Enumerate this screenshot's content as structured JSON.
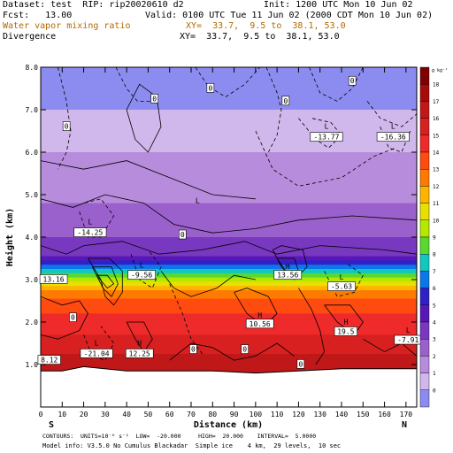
{
  "header": {
    "dataset": "Dataset: test  RIP: rip20020610 d2",
    "init": "Init: 1200 UTC Mon 10 Jun 02",
    "fcst": "Fcst:   13.00",
    "valid": "Valid: 0100 UTC Tue 11 Jun 02 (2000 CDT Mon 10 Jun 02)",
    "field1": "Water vapor mixing ratio",
    "field1_xy": "XY=  33.7,  9.5 to  38.1, 53.0",
    "field2": "Divergence",
    "field2_xy": "XY=  33.7,  9.5 to  38.1, 53.0"
  },
  "footer": {
    "contours": "CONTOURS:  UNITS=10⁻⁶ s⁻¹  LOW=  -20.000     HIGH=  20.000    INTERVAL=  5.0000",
    "model_info": "Model info: V3.5.0 No Cumulus Blackadar  Simple ice    4 km,  29 levels,  10 sec"
  },
  "chart_data": {
    "type": "heatmap",
    "xlabel": "Distance (km)",
    "ylabel": "Height (km)",
    "xlim": [
      0,
      175
    ],
    "ylim": [
      0,
      8
    ],
    "x_ticks": [
      0,
      10,
      20,
      30,
      40,
      50,
      60,
      70,
      80,
      90,
      100,
      110,
      120,
      130,
      140,
      150,
      160,
      170
    ],
    "y_ticks": [
      1.0,
      2.0,
      3.0,
      4.0,
      5.0,
      6.0,
      7.0,
      8.0
    ],
    "y_tick_labels": [
      "1.0",
      "2.0",
      "3.0",
      "4.0",
      "5.0",
      "6.0",
      "7.0",
      "8.0"
    ],
    "x_end_labels": [
      "S",
      "N"
    ],
    "colorbar": {
      "unit": "g kg⁻¹",
      "levels": [
        18,
        17,
        16,
        15,
        14,
        13,
        12,
        11,
        10,
        9,
        8,
        7,
        6,
        5,
        4,
        3,
        2,
        1,
        0
      ],
      "colors": [
        "#7f0000",
        "#a60a0a",
        "#c01818",
        "#d82020",
        "#ee2a2a",
        "#ff4a10",
        "#ff7a00",
        "#ffb400",
        "#e8e000",
        "#b4e800",
        "#58d830",
        "#10c8c0",
        "#0a78e8",
        "#3020c8",
        "#5818b8",
        "#7838c0",
        "#9a60cc",
        "#b88cdc",
        "#d0b8ec",
        "#8c8cf0"
      ]
    },
    "moisture_bands": [
      {
        "z": 8.0,
        "level": 0
      },
      {
        "z": 7.0,
        "level": 1
      },
      {
        "z": 6.0,
        "level": 2
      },
      {
        "z": 4.8,
        "level": 3
      },
      {
        "z": 4.0,
        "level": 4
      },
      {
        "z": 3.55,
        "level": 5
      },
      {
        "z": 3.45,
        "level": 6
      },
      {
        "z": 3.35,
        "level": 7
      },
      {
        "z": 3.25,
        "level": 8
      },
      {
        "z": 3.15,
        "level": 9
      },
      {
        "z": 3.05,
        "level": 10
      },
      {
        "z": 2.95,
        "level": 11
      },
      {
        "z": 2.85,
        "level": 12
      },
      {
        "z": 2.75,
        "level": 13
      },
      {
        "z": 2.55,
        "level": 14
      },
      {
        "z": 2.2,
        "level": 15
      },
      {
        "z": 1.7,
        "level": 16
      },
      {
        "z": 1.25,
        "level": 17
      }
    ],
    "terrain": [
      [
        0,
        0.85
      ],
      [
        10,
        0.85
      ],
      [
        20,
        0.95
      ],
      [
        40,
        0.85
      ],
      [
        60,
        0.85
      ],
      [
        80,
        0.85
      ],
      [
        100,
        0.8
      ],
      [
        120,
        0.85
      ],
      [
        140,
        0.9
      ],
      [
        160,
        0.9
      ],
      [
        175,
        0.9
      ]
    ],
    "annotations": [
      {
        "text": "L",
        "x": 23,
        "y": 4.3
      },
      {
        "text": "-14.25",
        "x": 23,
        "y": 4.05
      },
      {
        "text": "L",
        "x": 73,
        "y": 4.8
      },
      {
        "text": "L",
        "x": 47,
        "y": 3.28
      },
      {
        "text": "-9.56",
        "x": 47,
        "y": 3.05
      },
      {
        "text": "13.16",
        "x": 6,
        "y": 2.95
      },
      {
        "text": "H",
        "x": 115,
        "y": 3.25
      },
      {
        "text": "13.56",
        "x": 115,
        "y": 3.05
      },
      {
        "text": "L",
        "x": 133,
        "y": 6.55
      },
      {
        "text": "-13.77",
        "x": 133,
        "y": 6.3
      },
      {
        "text": "L",
        "x": 164,
        "y": 6.55
      },
      {
        "text": "-16.36",
        "x": 164,
        "y": 6.3
      },
      {
        "text": "L",
        "x": 140,
        "y": 3.0
      },
      {
        "text": "-5.63",
        "x": 140,
        "y": 2.78
      },
      {
        "text": "H",
        "x": 102,
        "y": 2.1
      },
      {
        "text": "10.56",
        "x": 102,
        "y": 1.9
      },
      {
        "text": "H",
        "x": 142,
        "y": 1.95
      },
      {
        "text": "19.5",
        "x": 142,
        "y": 1.72
      },
      {
        "text": "L",
        "x": 171,
        "y": 1.75
      },
      {
        "text": "-7.91",
        "x": 171,
        "y": 1.52
      },
      {
        "text": "L",
        "x": 26,
        "y": 1.45
      },
      {
        "text": "-21.04",
        "x": 26,
        "y": 1.2
      },
      {
        "text": "H",
        "x": 46,
        "y": 1.45
      },
      {
        "text": "12.25",
        "x": 46,
        "y": 1.2
      },
      {
        "text": "8.12",
        "x": 4,
        "y": 1.05
      }
    ],
    "contour_labels": [
      {
        "text": "0",
        "x": 79,
        "y": 7.45
      },
      {
        "text": "0",
        "x": 145,
        "y": 7.62
      },
      {
        "text": "0",
        "x": 53,
        "y": 7.2
      },
      {
        "text": "0",
        "x": 114,
        "y": 7.15
      },
      {
        "text": "0",
        "x": 12,
        "y": 6.55
      },
      {
        "text": "0",
        "x": 66,
        "y": 4.0
      },
      {
        "text": "0",
        "x": 15,
        "y": 2.05
      },
      {
        "text": "0",
        "x": 71,
        "y": 1.3
      },
      {
        "text": "0",
        "x": 95,
        "y": 1.3
      },
      {
        "text": "0",
        "x": 121,
        "y": 0.95
      }
    ],
    "divergence_lines": [
      {
        "dash": true,
        "pts": [
          [
            8,
            8.0
          ],
          [
            12,
            7.2
          ],
          [
            14,
            6.5
          ],
          [
            12,
            6.0
          ],
          [
            8,
            5.6
          ]
        ]
      },
      {
        "dash": true,
        "pts": [
          [
            35,
            8.0
          ],
          [
            40,
            7.5
          ],
          [
            45,
            7.2
          ],
          [
            52,
            7.2
          ]
        ]
      },
      {
        "dash": true,
        "pts": [
          [
            72,
            8.0
          ],
          [
            78,
            7.55
          ],
          [
            86,
            7.3
          ],
          [
            95,
            7.6
          ],
          [
            102,
            8.0
          ]
        ]
      },
      {
        "dash": true,
        "pts": [
          [
            105,
            8.0
          ],
          [
            110,
            7.4
          ],
          [
            112,
            7.0
          ],
          [
            110,
            6.4
          ],
          [
            106,
            6.0
          ]
        ]
      },
      {
        "dash": true,
        "pts": [
          [
            125,
            8.0
          ],
          [
            130,
            7.4
          ],
          [
            138,
            7.2
          ],
          [
            145,
            7.5
          ],
          [
            150,
            8.0
          ]
        ]
      },
      {
        "dash": true,
        "pts": [
          [
            152,
            7.2
          ],
          [
            158,
            6.8
          ],
          [
            168,
            6.6
          ],
          [
            175,
            6.9
          ]
        ]
      },
      {
        "dash": true,
        "pts": [
          [
            120,
            6.8
          ],
          [
            128,
            6.3
          ],
          [
            134,
            6.1
          ],
          [
            140,
            6.4
          ],
          [
            135,
            6.7
          ],
          [
            126,
            6.8
          ]
        ]
      },
      {
        "dash": true,
        "pts": [
          [
            158,
            6.6
          ],
          [
            162,
            6.1
          ],
          [
            168,
            6.0
          ],
          [
            172,
            6.5
          ]
        ]
      },
      {
        "dash": true,
        "pts": [
          [
            100,
            6.5
          ],
          [
            108,
            5.6
          ],
          [
            120,
            5.2
          ],
          [
            140,
            5.4
          ],
          [
            155,
            5.9
          ],
          [
            165,
            6.1
          ]
        ]
      },
      {
        "dash": true,
        "pts": [
          [
            18,
            4.6
          ],
          [
            22,
            4.0
          ],
          [
            28,
            4.0
          ],
          [
            34,
            4.5
          ],
          [
            28,
            4.9
          ],
          [
            20,
            4.8
          ]
        ]
      },
      {
        "dash": true,
        "pts": [
          [
            42,
            3.6
          ],
          [
            46,
            3.0
          ],
          [
            52,
            2.8
          ],
          [
            56,
            3.3
          ],
          [
            50,
            3.7
          ]
        ]
      },
      {
        "dash": true,
        "pts": [
          [
            132,
            3.2
          ],
          [
            138,
            2.6
          ],
          [
            146,
            2.7
          ],
          [
            150,
            3.1
          ],
          [
            142,
            3.4
          ]
        ]
      },
      {
        "dash": true,
        "pts": [
          [
            60,
            2.9
          ],
          [
            66,
            2.2
          ],
          [
            70,
            1.6
          ],
          [
            76,
            1.2
          ]
        ]
      },
      {
        "dash": true,
        "pts": [
          [
            20,
            1.7
          ],
          [
            24,
            1.2
          ],
          [
            30,
            1.1
          ],
          [
            34,
            1.5
          ],
          [
            28,
            1.9
          ]
        ]
      },
      {
        "dash": false,
        "pts": [
          [
            40,
            7.0
          ],
          [
            44,
            6.3
          ],
          [
            50,
            6.0
          ],
          [
            56,
            6.6
          ],
          [
            54,
            7.3
          ],
          [
            46,
            7.6
          ],
          [
            40,
            7.0
          ]
        ]
      },
      {
        "dash": false,
        "pts": [
          [
            0,
            5.8
          ],
          [
            20,
            5.6
          ],
          [
            40,
            5.8
          ],
          [
            60,
            5.4
          ],
          [
            80,
            5.0
          ],
          [
            100,
            4.9
          ]
        ]
      },
      {
        "dash": false,
        "pts": [
          [
            0,
            4.9
          ],
          [
            15,
            4.7
          ],
          [
            30,
            5.0
          ],
          [
            48,
            4.8
          ],
          [
            62,
            4.3
          ],
          [
            80,
            4.1
          ],
          [
            100,
            4.2
          ],
          [
            120,
            4.4
          ],
          [
            145,
            4.5
          ],
          [
            175,
            4.4
          ]
        ]
      },
      {
        "dash": false,
        "pts": [
          [
            0,
            3.8
          ],
          [
            12,
            3.6
          ],
          [
            20,
            3.8
          ],
          [
            38,
            3.9
          ],
          [
            55,
            3.6
          ],
          [
            75,
            3.7
          ],
          [
            95,
            3.9
          ],
          [
            110,
            3.6
          ],
          [
            130,
            3.8
          ],
          [
            160,
            3.7
          ],
          [
            175,
            3.6
          ]
        ]
      },
      {
        "dash": false,
        "pts": [
          [
            22,
            3.5
          ],
          [
            28,
            3.0
          ],
          [
            30,
            2.6
          ],
          [
            34,
            2.4
          ],
          [
            38,
            2.7
          ],
          [
            38,
            3.2
          ],
          [
            32,
            3.5
          ],
          [
            22,
            3.5
          ]
        ]
      },
      {
        "dash": false,
        "pts": [
          [
            24,
            3.3
          ],
          [
            29,
            2.8
          ],
          [
            33,
            2.6
          ],
          [
            36,
            2.9
          ],
          [
            33,
            3.3
          ],
          [
            24,
            3.3
          ]
        ]
      },
      {
        "dash": false,
        "pts": [
          [
            26,
            3.1
          ],
          [
            31,
            2.8
          ],
          [
            34,
            2.9
          ],
          [
            31,
            3.1
          ],
          [
            26,
            3.1
          ]
        ]
      },
      {
        "dash": false,
        "pts": [
          [
            108,
            3.7
          ],
          [
            112,
            3.3
          ],
          [
            118,
            3.0
          ],
          [
            124,
            3.3
          ],
          [
            122,
            3.7
          ],
          [
            112,
            3.8
          ],
          [
            108,
            3.7
          ]
        ]
      },
      {
        "dash": false,
        "pts": [
          [
            110,
            3.5
          ],
          [
            114,
            3.2
          ],
          [
            120,
            3.2
          ],
          [
            118,
            3.5
          ],
          [
            110,
            3.5
          ]
        ]
      },
      {
        "dash": false,
        "pts": [
          [
            90,
            2.7
          ],
          [
            96,
            2.2
          ],
          [
            104,
            1.9
          ],
          [
            110,
            2.2
          ],
          [
            106,
            2.6
          ],
          [
            96,
            2.8
          ],
          [
            90,
            2.7
          ]
        ]
      },
      {
        "dash": false,
        "pts": [
          [
            132,
            2.4
          ],
          [
            138,
            2.0
          ],
          [
            146,
            1.7
          ],
          [
            150,
            2.0
          ],
          [
            144,
            2.4
          ],
          [
            132,
            2.4
          ]
        ]
      },
      {
        "dash": false,
        "pts": [
          [
            40,
            2.0
          ],
          [
            44,
            1.6
          ],
          [
            48,
            1.3
          ],
          [
            52,
            1.6
          ],
          [
            48,
            2.0
          ],
          [
            40,
            2.0
          ]
        ]
      },
      {
        "dash": false,
        "pts": [
          [
            0,
            2.6
          ],
          [
            10,
            2.4
          ],
          [
            18,
            2.5
          ],
          [
            22,
            2.2
          ],
          [
            18,
            1.8
          ],
          [
            8,
            1.6
          ],
          [
            0,
            1.7
          ]
        ]
      },
      {
        "dash": false,
        "pts": [
          [
            56,
            3.2
          ],
          [
            62,
            2.8
          ],
          [
            70,
            2.6
          ],
          [
            82,
            2.8
          ],
          [
            90,
            3.1
          ],
          [
            100,
            3.0
          ]
        ]
      },
      {
        "dash": false,
        "pts": [
          [
            120,
            2.8
          ],
          [
            126,
            2.3
          ],
          [
            130,
            1.8
          ],
          [
            132,
            1.3
          ],
          [
            128,
            1.0
          ]
        ]
      },
      {
        "dash": false,
        "pts": [
          [
            150,
            1.6
          ],
          [
            160,
            1.3
          ],
          [
            168,
            1.5
          ],
          [
            175,
            1.2
          ]
        ]
      },
      {
        "dash": false,
        "pts": [
          [
            60,
            1.1
          ],
          [
            70,
            1.5
          ],
          [
            80,
            1.4
          ],
          [
            90,
            1.1
          ],
          [
            100,
            1.2
          ],
          [
            110,
            1.5
          ],
          [
            118,
            1.2
          ]
        ]
      }
    ]
  }
}
